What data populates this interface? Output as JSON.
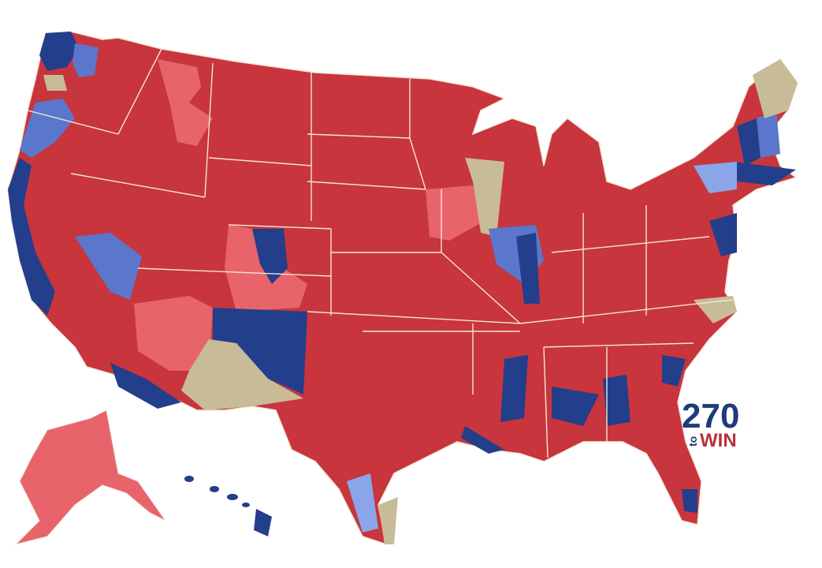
{
  "logo": {
    "number": "270",
    "connector": "to",
    "word": "WIN"
  }
}
